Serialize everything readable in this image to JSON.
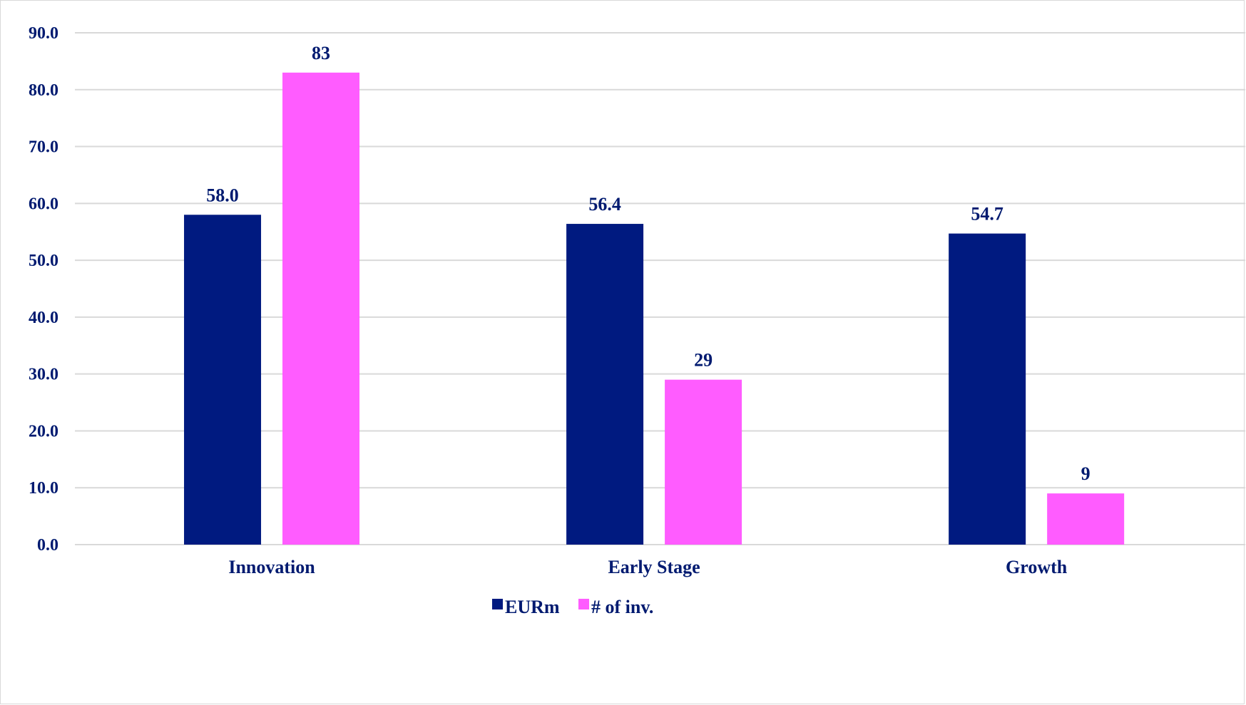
{
  "chart_data": {
    "type": "bar",
    "title": "",
    "xlabel": "",
    "ylabel": "",
    "categories": [
      "Innovation",
      "Early Stage",
      "Growth"
    ],
    "series": [
      {
        "name": "EURm",
        "values": [
          58.0,
          56.4,
          54.7
        ],
        "labels": [
          "58.0",
          "56.4",
          "54.7"
        ],
        "color": "#001a80"
      },
      {
        "name": "# of inv.",
        "values": [
          83,
          29,
          9
        ],
        "labels": [
          "83",
          "29",
          "9"
        ],
        "color": "#ff5cff"
      }
    ],
    "ylim": [
      0,
      90
    ],
    "yticks": [
      "0.0",
      "10.0",
      "20.0",
      "30.0",
      "40.0",
      "50.0",
      "60.0",
      "70.0",
      "80.0",
      "90.0"
    ],
    "grid": true,
    "gridColor": "#d9d9d9",
    "textColor": "#001a70",
    "legend": "bottom-center"
  }
}
